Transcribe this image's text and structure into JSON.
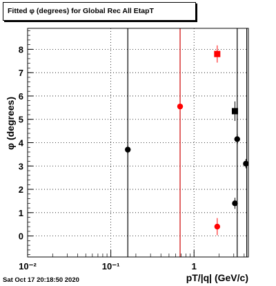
{
  "title": "Fitted φ (degrees) for Global Rec All EtapT",
  "timestamp": "Sat Oct 17 20:18:50 2020",
  "chart_data": {
    "type": "scatter",
    "xlabel": "pT/|q| (GeV/c)",
    "ylabel": "φ (degrees)",
    "xscale": "log",
    "xlim": [
      0.01,
      4.5
    ],
    "ylim": [
      -0.9,
      8.9
    ],
    "x_ticks": [
      {
        "value": 0.01,
        "label": "10⁻²"
      },
      {
        "value": 0.1,
        "label": "10⁻¹"
      },
      {
        "value": 1,
        "label": "1"
      }
    ],
    "y_ticks": [
      0,
      1,
      2,
      3,
      4,
      5,
      6,
      7,
      8
    ],
    "grid": true,
    "vertical_lines": [
      {
        "x": 0.16,
        "color": "#000000"
      },
      {
        "x": 0.68,
        "color": "#cc0000"
      },
      {
        "x": 3.3,
        "color": "#000000"
      },
      {
        "x": 4.3,
        "color": "#000000"
      }
    ],
    "series": [
      {
        "color": "#000000",
        "marker": "circle",
        "points": [
          {
            "x": 0.16,
            "y": 3.7,
            "err": 0.07
          },
          {
            "x": 3.3,
            "y": 4.15,
            "err": 0.1
          },
          {
            "x": 4.2,
            "y": 3.1,
            "err": 0.08
          },
          {
            "x": 3.1,
            "y": 1.4,
            "err": 0.12
          }
        ]
      },
      {
        "color": "#000000",
        "marker": "square",
        "points": [
          {
            "x": 3.1,
            "y": 5.35,
            "err": 0.3
          }
        ]
      },
      {
        "color": "#ff0000",
        "marker": "circle",
        "points": [
          {
            "x": 0.68,
            "y": 5.55,
            "err": 0.06
          },
          {
            "x": 1.9,
            "y": 0.4,
            "err": 0.25
          }
        ]
      },
      {
        "color": "#ff0000",
        "marker": "square",
        "points": [
          {
            "x": 1.9,
            "y": 7.8,
            "err": 0.25
          }
        ]
      }
    ]
  }
}
